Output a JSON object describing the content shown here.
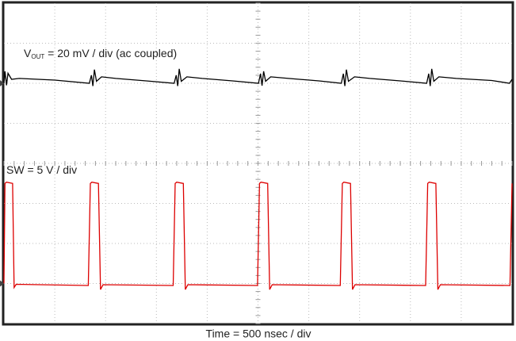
{
  "chart_data": {
    "type": "scope",
    "x_label": "Time = 500 nsec / div",
    "xlim": [
      0,
      10
    ],
    "ylim": [
      -4,
      4
    ],
    "series": [
      {
        "label": {
          "symbol": "V",
          "subscript": "OUT",
          "text": " = 20 mV / div (ac coupled)"
        },
        "color": "#000000",
        "x": [
          0,
          0.02,
          0.05,
          0.08,
          0.15,
          0.3,
          1.0,
          1.68,
          1.72,
          1.75,
          1.78,
          1.82,
          1.92,
          2.2,
          2.8,
          3.35,
          3.39,
          3.42,
          3.45,
          3.49,
          3.6,
          3.9,
          4.5,
          5.01,
          5.05,
          5.08,
          5.11,
          5.15,
          5.25,
          5.6,
          6.2,
          6.64,
          6.68,
          6.71,
          6.74,
          6.78,
          6.9,
          7.2,
          7.8,
          8.32,
          8.36,
          8.39,
          8.42,
          8.46,
          8.56,
          8.9,
          9.6,
          9.95,
          10
        ],
        "values": [
          2.0,
          2.3,
          1.95,
          2.25,
          2.1,
          2.12,
          2.08,
          2.0,
          2.2,
          1.93,
          2.34,
          2.05,
          2.16,
          2.12,
          2.06,
          2.0,
          2.2,
          1.93,
          2.36,
          2.05,
          2.16,
          2.12,
          2.06,
          2.0,
          2.24,
          1.94,
          2.3,
          2.05,
          2.16,
          2.12,
          2.06,
          2.0,
          2.24,
          1.93,
          2.34,
          2.05,
          2.16,
          2.12,
          2.06,
          2.0,
          2.24,
          1.93,
          2.36,
          2.05,
          2.16,
          2.12,
          2.07,
          2.0,
          2.1
        ]
      },
      {
        "label": {
          "text": "SW = 5 V / div"
        },
        "color": "#dd0000",
        "x": [
          0,
          0.02,
          0.05,
          0.17,
          0.2,
          0.24,
          1.66,
          1.7,
          1.73,
          1.86,
          1.9,
          1.95,
          3.33,
          3.37,
          3.4,
          3.53,
          3.57,
          3.62,
          4.99,
          5.03,
          5.06,
          5.19,
          5.23,
          5.28,
          6.62,
          6.66,
          6.69,
          6.82,
          6.86,
          6.91,
          8.3,
          8.34,
          8.37,
          8.5,
          8.54,
          8.59,
          9.96,
          10
        ],
        "values": [
          -3.0,
          -0.5,
          -0.47,
          -0.5,
          -3.1,
          -3.02,
          -3.05,
          -0.5,
          -0.47,
          -0.5,
          -3.15,
          -3.03,
          -3.05,
          -0.5,
          -0.47,
          -0.5,
          -3.15,
          -3.03,
          -3.05,
          -0.5,
          -0.47,
          -0.5,
          -3.15,
          -3.03,
          -3.05,
          -0.5,
          -0.47,
          -0.5,
          -3.15,
          -3.03,
          -3.05,
          -0.5,
          -0.47,
          -0.5,
          -3.15,
          -3.03,
          -3.05,
          -0.5
        ]
      }
    ]
  }
}
